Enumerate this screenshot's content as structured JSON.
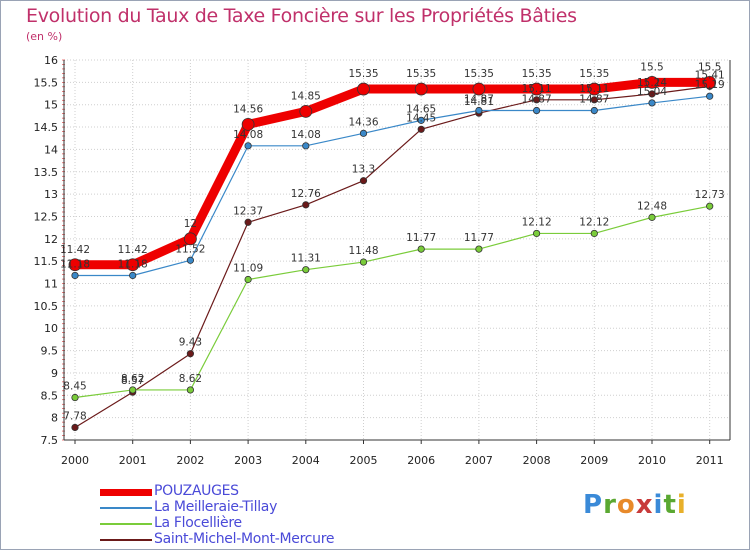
{
  "title": "Evolution du Taux de Taxe Foncière sur les Propriétés Bâties",
  "unit_label": "(en %)",
  "logo": {
    "letters": [
      "P",
      "r",
      "o",
      "x",
      "i",
      "t",
      "i"
    ],
    "colors": [
      "#3a8ad8",
      "#5aa832",
      "#e88a2a",
      "#c83a3a",
      "#3a8ad8",
      "#5aa832",
      "#e8b02a"
    ]
  },
  "chart_data": {
    "type": "line",
    "title": "Evolution du Taux de Taxe Foncière sur les Propriétés Bâties",
    "ylabel": "(en %)",
    "xlabel": "",
    "ylim": [
      7.5,
      16
    ],
    "yticks": [
      "7.5",
      "8",
      "8.5",
      "9",
      "9.5",
      "10",
      "10.5",
      "11",
      "11.5",
      "12",
      "12.5",
      "13",
      "13.5",
      "14",
      "14.5",
      "15",
      "15.5",
      "16"
    ],
    "categories": [
      "2000",
      "2001",
      "2002",
      "2003",
      "2004",
      "2005",
      "2006",
      "2007",
      "2008",
      "2009",
      "2010",
      "2011"
    ],
    "series": [
      {
        "name": "PouzAUGES",
        "legend_label": "POUZAUGES",
        "color": "#ee0000",
        "values": [
          11.42,
          11.42,
          12.0,
          14.56,
          14.85,
          15.35,
          15.35,
          15.35,
          15.35,
          15.35,
          15.5,
          15.5
        ],
        "labels": [
          "11.42",
          "11.42",
          "12",
          "14.56",
          "14.85",
          "15.35",
          "15.35",
          "15.35",
          "15.35",
          "15.35",
          "15.5",
          "15.5"
        ]
      },
      {
        "name": "La Meilleraie-Tillay",
        "legend_label": "La Meilleraie-Tillay",
        "color": "#3a88c8",
        "values": [
          11.18,
          11.18,
          11.52,
          14.08,
          14.08,
          14.36,
          14.65,
          14.87,
          14.87,
          14.87,
          15.04,
          15.19
        ],
        "labels": [
          "11.18",
          "11.18",
          "11.52",
          "14.08",
          "14.08",
          "14.36",
          "14.65",
          "14.87",
          "14.87",
          "14.87",
          "15.04",
          "15.19"
        ]
      },
      {
        "name": "La Flocellière",
        "legend_label": "La Flocellière",
        "color": "#7acc3a",
        "values": [
          8.45,
          8.62,
          8.62,
          11.09,
          11.31,
          11.48,
          11.77,
          11.77,
          12.12,
          12.12,
          12.48,
          12.73
        ],
        "labels": [
          "8.45",
          "8.62",
          "8.62",
          "11.09",
          "11.31",
          "11.48",
          "11.77",
          "11.77",
          "12.12",
          "12.12",
          "12.48",
          "12.73"
        ]
      },
      {
        "name": "Saint-Michel-Mont-Mercure",
        "legend_label": "Saint-Michel-Mont-Mercure",
        "color": "#6b1a1a",
        "values": [
          7.78,
          8.57,
          9.43,
          12.37,
          12.76,
          13.3,
          14.45,
          14.81,
          15.11,
          15.11,
          15.24,
          15.41
        ],
        "labels": [
          "7.78",
          "8.57",
          "9.43",
          "12.37",
          "12.76",
          "13.3",
          "14.45",
          "14.81",
          "15.11",
          "15.11",
          "15.24",
          "15.41"
        ]
      }
    ]
  }
}
